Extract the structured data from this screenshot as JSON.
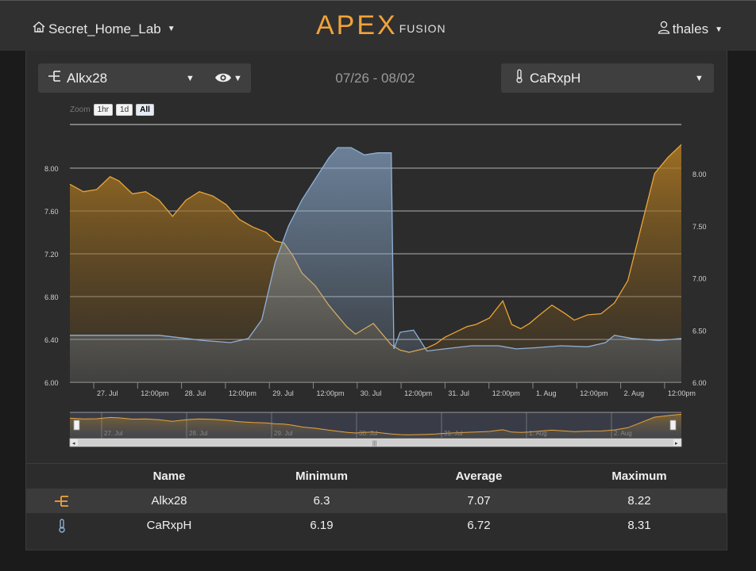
{
  "header": {
    "location": "Secret_Home_Lab",
    "logo_main": "APEX",
    "logo_sub": "FUSION",
    "user": "thales"
  },
  "selectors": {
    "left_probe": "Alkx28",
    "right_probe": "CaRxpH",
    "date_range": "07/26 - 08/02"
  },
  "zoom": {
    "label": "Zoom",
    "buttons": [
      "1hr",
      "1d",
      "All"
    ],
    "active": "All"
  },
  "colors": {
    "alk": "#e8a53a",
    "ph": "#8fb0d6",
    "accent": "#f2a33a"
  },
  "chart_data": {
    "type": "area",
    "left_axis": {
      "ticks": [
        "6.00",
        "6.40",
        "6.80",
        "7.20",
        "7.60",
        "8.00"
      ],
      "ylim": [
        6.0,
        8.0
      ]
    },
    "right_axis": {
      "ticks": [
        "6.00",
        "6.50",
        "7.00",
        "7.50",
        "8.00"
      ],
      "ylim": [
        6.0,
        8.0
      ]
    },
    "x_ticks": [
      "27. Jul",
      "12:00pm",
      "28. Jul",
      "12:00pm",
      "29. Jul",
      "12:00pm",
      "30. Jul",
      "12:00pm",
      "31. Jul",
      "12:00pm",
      "1. Aug",
      "12:00pm",
      "2. Aug",
      "12:00pm"
    ],
    "navigator_ticks": [
      "27. Jul",
      "28. Jul",
      "29. Jul",
      "30. Jul",
      "31. Jul",
      "1. Aug",
      "2. Aug"
    ],
    "x_range_days": [
      0,
      6.85
    ],
    "series": [
      {
        "name": "Alkx28",
        "axis": "left",
        "x": [
          0,
          0.15,
          0.3,
          0.45,
          0.55,
          0.7,
          0.85,
          1.0,
          1.15,
          1.3,
          1.45,
          1.6,
          1.75,
          1.9,
          2.05,
          2.2,
          2.3,
          2.4,
          2.5,
          2.6,
          2.75,
          2.9,
          3.0,
          3.1,
          3.2,
          3.3,
          3.4,
          3.5,
          3.6,
          3.7,
          3.8,
          3.9,
          4.0,
          4.1,
          4.2,
          4.35,
          4.45,
          4.55,
          4.7,
          4.85,
          4.95,
          5.05,
          5.15,
          5.25,
          5.4,
          5.55,
          5.65,
          5.8,
          5.95,
          6.1,
          6.25,
          6.4,
          6.55,
          6.7,
          6.85
        ],
        "values": [
          7.85,
          7.78,
          7.8,
          7.92,
          7.88,
          7.76,
          7.78,
          7.7,
          7.55,
          7.7,
          7.78,
          7.74,
          7.66,
          7.52,
          7.45,
          7.4,
          7.32,
          7.3,
          7.18,
          7.02,
          6.9,
          6.72,
          6.62,
          6.52,
          6.45,
          6.5,
          6.55,
          6.45,
          6.35,
          6.3,
          6.28,
          6.3,
          6.32,
          6.36,
          6.42,
          6.48,
          6.52,
          6.54,
          6.6,
          6.76,
          6.54,
          6.5,
          6.55,
          6.62,
          6.72,
          6.64,
          6.58,
          6.63,
          6.64,
          6.74,
          6.95,
          7.45,
          7.95,
          8.1,
          8.22
        ]
      },
      {
        "name": "CaRxpH",
        "axis": "right",
        "x": [
          0,
          0.5,
          1.0,
          1.5,
          1.8,
          2.0,
          2.15,
          2.3,
          2.45,
          2.6,
          2.75,
          2.9,
          3.0,
          3.15,
          3.3,
          3.45,
          3.55,
          3.6,
          3.63,
          3.7,
          3.85,
          4.0,
          4.2,
          4.5,
          4.8,
          5.0,
          5.2,
          5.5,
          5.8,
          6.0,
          6.1,
          6.3,
          6.6,
          6.85
        ],
        "values": [
          6.45,
          6.45,
          6.45,
          6.4,
          6.38,
          6.42,
          6.6,
          7.15,
          7.5,
          7.75,
          7.95,
          8.15,
          8.25,
          8.25,
          8.18,
          8.2,
          8.2,
          8.2,
          6.32,
          6.48,
          6.5,
          6.3,
          6.32,
          6.35,
          6.35,
          6.32,
          6.33,
          6.35,
          6.34,
          6.38,
          6.45,
          6.42,
          6.4,
          6.42
        ]
      }
    ]
  },
  "stats": {
    "headers": [
      "Name",
      "Minimum",
      "Average",
      "Maximum"
    ],
    "rows": [
      {
        "name": "Alkx28",
        "icon": "alkalinity-icon",
        "min": "6.3",
        "avg": "7.07",
        "max": "8.22"
      },
      {
        "name": "CaRxpH",
        "icon": "thermometer-icon",
        "min": "6.19",
        "avg": "6.72",
        "max": "8.31"
      }
    ]
  }
}
